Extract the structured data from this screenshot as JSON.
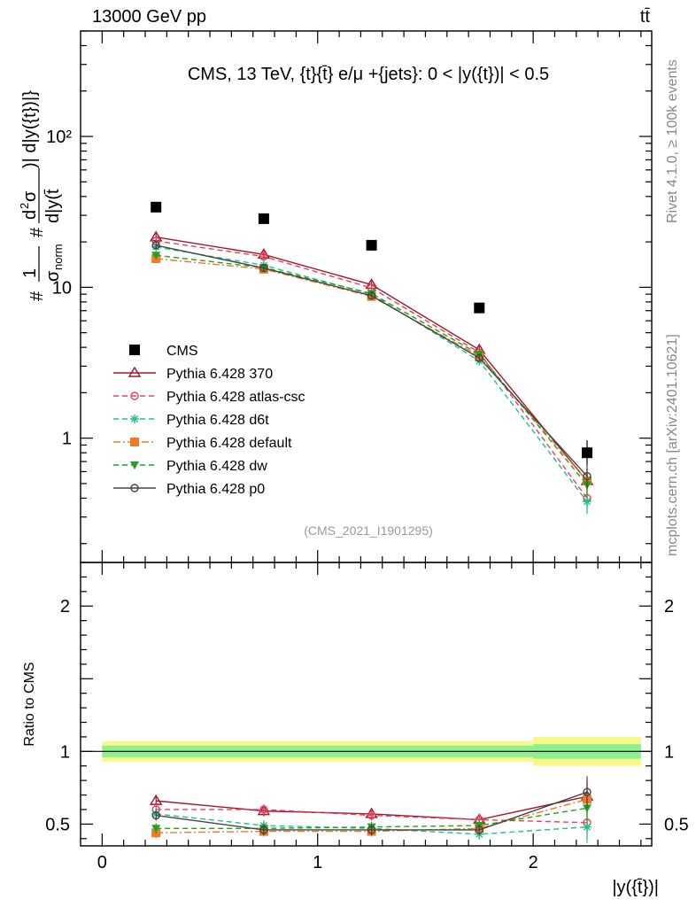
{
  "header": {
    "energy": "13000 GeV pp",
    "process": "tt̄"
  },
  "side_labels": {
    "rivet": "Rivet 4.1.0, ≥ 100k events",
    "mcplots": "mcplots.cern.ch [arXiv:2401.10621]"
  },
  "chart_data": [
    {
      "type": "line",
      "panel": "main",
      "title": "CMS, 13 TeV, {t}{t̄} e/μ +{jets}: 0 < |y({t})| < 0.5",
      "watermark": "(CMS_2021_I1901295)",
      "ylabel": "# 1/σ_norm # d²σ / d|y(t̄)| d|y({t})|",
      "ylabel_parts": {
        "hash": "#",
        "one": "1",
        "sigma_norm": "σ",
        "sub_norm": "norm",
        "d2sigma": "d",
        "sup2": "2",
        "sigma": "σ",
        "denom": "d|y(t̄",
        "num_tail": ")| d|y({t})|}"
      },
      "yscale": "log",
      "ylim": [
        0.15,
        500
      ],
      "xlim": [
        -0.1,
        2.55
      ],
      "yticks": [
        {
          "value": 1,
          "label": "1"
        },
        {
          "value": 10,
          "label": "10"
        },
        {
          "value": 100,
          "label": "10²"
        }
      ],
      "x": [
        0.25,
        0.75,
        1.25,
        1.75,
        2.25
      ],
      "series": [
        {
          "name": "CMS",
          "color": "#000000",
          "marker": "square",
          "line": "none",
          "values": [
            34.0,
            28.5,
            19.0,
            7.3,
            0.8
          ]
        },
        {
          "name": "Pythia 6.428 370",
          "color": "#a3182a",
          "marker": "triangle-open",
          "line": "solid",
          "values": [
            21.5,
            16.5,
            10.4,
            3.85,
            0.52
          ]
        },
        {
          "name": "Pythia 6.428 atlas-csc",
          "color": "#e8405e",
          "marker": "circle-open",
          "line": "dashed",
          "values": [
            20.3,
            16.0,
            9.9,
            3.7,
            0.4
          ]
        },
        {
          "name": "Pythia 6.428 d6t",
          "color": "#22c08a",
          "marker": "star",
          "line": "dashed",
          "values": [
            18.5,
            14.0,
            9.0,
            3.25,
            0.38
          ]
        },
        {
          "name": "Pythia 6.428 default",
          "color": "#f07a28",
          "marker": "square",
          "line": "dashdot",
          "values": [
            15.5,
            13.2,
            8.7,
            3.5,
            0.52
          ]
        },
        {
          "name": "Pythia 6.428 dw",
          "color": "#1fa31f",
          "marker": "triangle-down",
          "line": "dashed",
          "values": [
            16.3,
            13.5,
            9.1,
            3.6,
            0.49
          ]
        },
        {
          "name": "Pythia 6.428 p0",
          "color": "#444444",
          "marker": "circle-open",
          "line": "solid",
          "values": [
            19.0,
            13.4,
            8.8,
            3.4,
            0.56
          ]
        }
      ]
    },
    {
      "type": "line",
      "panel": "ratio",
      "ylabel": "Ratio to CMS",
      "xlabel": "|y({t̄})|",
      "ylim": [
        0.35,
        2.3
      ],
      "xlim": [
        -0.1,
        2.55
      ],
      "yticks": [
        {
          "value": 0.5,
          "label": "0.5"
        },
        {
          "value": 1,
          "label": "1"
        },
        {
          "value": 2,
          "label": "2"
        }
      ],
      "xticks": [
        {
          "value": 0,
          "label": "0"
        },
        {
          "value": 1,
          "label": "1"
        },
        {
          "value": 2,
          "label": "2"
        }
      ],
      "x": [
        0.25,
        0.75,
        1.25,
        1.75,
        2.25
      ],
      "bands": [
        {
          "x_from": 0.0,
          "x_to": 2.0,
          "inner": [
            0.96,
            1.04
          ],
          "outer": [
            0.93,
            1.07
          ]
        },
        {
          "x_from": 2.0,
          "x_to": 2.5,
          "inner": [
            0.95,
            1.05
          ],
          "outer": [
            0.9,
            1.1
          ]
        }
      ],
      "band_colors": {
        "inner": "#8ef08e",
        "outer": "#f7f78a"
      },
      "series": [
        {
          "name": "Pythia 6.428 370",
          "color": "#a3182a",
          "marker": "triangle-open",
          "line": "solid",
          "values": [
            0.66,
            0.59,
            0.57,
            0.53,
            0.69
          ]
        },
        {
          "name": "Pythia 6.428 atlas-csc",
          "color": "#e8405e",
          "marker": "circle-open",
          "line": "dashed",
          "values": [
            0.6,
            0.6,
            0.56,
            0.53,
            0.51
          ]
        },
        {
          "name": "Pythia 6.428 d6t",
          "color": "#22c08a",
          "marker": "star",
          "line": "dashed",
          "values": [
            0.57,
            0.49,
            0.47,
            0.43,
            0.48
          ]
        },
        {
          "name": "Pythia 6.428 default",
          "color": "#f07a28",
          "marker": "square",
          "line": "dashdot",
          "values": [
            0.44,
            0.45,
            0.45,
            0.47,
            0.67
          ]
        },
        {
          "name": "Pythia 6.428 dw",
          "color": "#1fa31f",
          "marker": "triangle-down",
          "line": "dashed",
          "values": [
            0.47,
            0.47,
            0.48,
            0.49,
            0.61
          ]
        },
        {
          "name": "Pythia 6.428 p0",
          "color": "#444444",
          "marker": "circle-open",
          "line": "solid",
          "values": [
            0.56,
            0.46,
            0.46,
            0.46,
            0.72
          ]
        }
      ]
    }
  ]
}
